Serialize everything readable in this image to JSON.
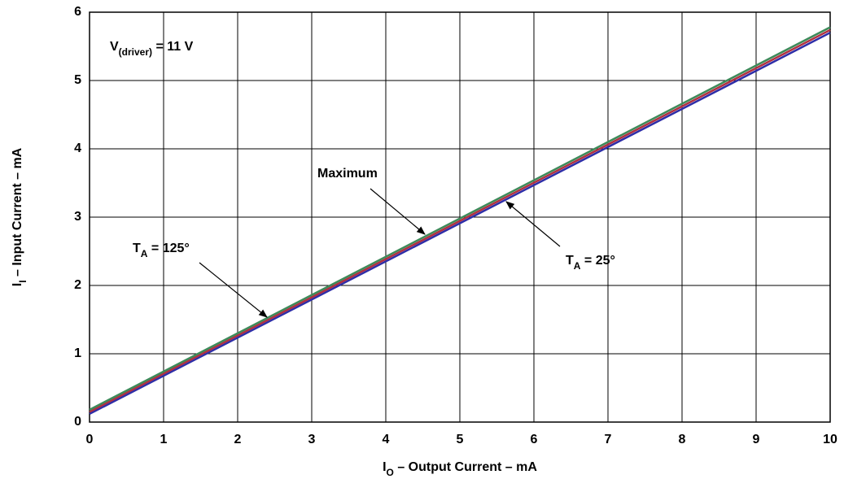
{
  "chart_data": {
    "type": "line",
    "x": [
      0,
      10
    ],
    "series": [
      {
        "color": "#2e2ea8",
        "values": [
          0.12,
          5.7
        ]
      },
      {
        "color": "#b03040",
        "values": [
          0.15,
          5.74
        ]
      },
      {
        "color": "#3d8a5a",
        "values": [
          0.18,
          5.78
        ]
      }
    ],
    "xlim": [
      0,
      10
    ],
    "ylim": [
      0,
      6
    ],
    "xticks": [
      0,
      1,
      2,
      3,
      4,
      5,
      6,
      7,
      8,
      9,
      10
    ],
    "yticks": [
      0,
      1,
      2,
      3,
      4,
      5,
      6
    ],
    "grid": true,
    "xlabel_parts": [
      "I",
      "O",
      " – Output Current – mA"
    ],
    "ylabel_parts": [
      "I",
      "I",
      " – Input Current – mA"
    ],
    "annotations": [
      {
        "parts": [
          "V",
          "(driver)",
          " = 11 V"
        ]
      },
      {
        "parts": [
          "Maximum"
        ]
      },
      {
        "parts": [
          "T",
          "A",
          " = 125°"
        ]
      },
      {
        "parts": [
          "T",
          "A",
          " = 25°"
        ]
      }
    ]
  }
}
